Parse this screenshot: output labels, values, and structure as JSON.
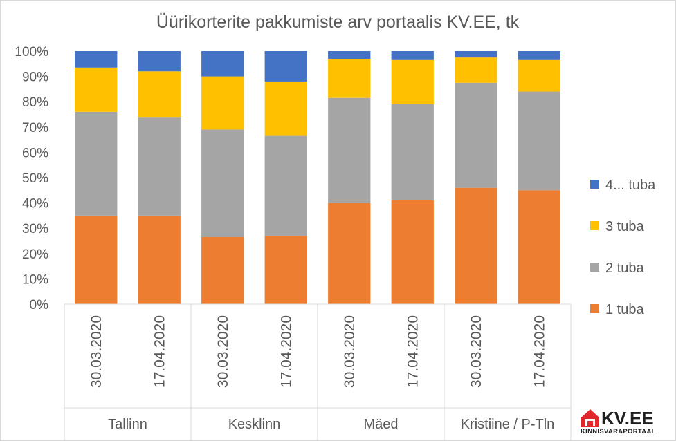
{
  "chart_data": {
    "type": "bar",
    "stacked": "percent",
    "title": "Üürikorterite pakkumiste arv portaalis KV.EE, tk",
    "y_ticks": [
      "0%",
      "10%",
      "20%",
      "30%",
      "40%",
      "50%",
      "60%",
      "70%",
      "80%",
      "90%",
      "100%"
    ],
    "ylim": [
      0,
      100
    ],
    "grid": false,
    "legend_position": "right",
    "groups": [
      {
        "name": "Tallinn",
        "categories": [
          "30.03.2020",
          "17.04.2020"
        ]
      },
      {
        "name": "Kesklinn",
        "categories": [
          "30.03.2020",
          "17.04.2020"
        ]
      },
      {
        "name": "Mäed",
        "categories": [
          "30.03.2020",
          "17.04.2020"
        ]
      },
      {
        "name": "Kristiine / P-Tln",
        "categories": [
          "30.03.2020",
          "17.04.2020"
        ]
      }
    ],
    "series": [
      {
        "name": "1 tuba",
        "color": "#ED7D31",
        "values": [
          35,
          35,
          26.5,
          27,
          40,
          41,
          46,
          45
        ]
      },
      {
        "name": "2 tuba",
        "color": "#A5A5A5",
        "values": [
          41,
          39,
          42.5,
          39.5,
          41.5,
          38,
          41.5,
          39
        ]
      },
      {
        "name": "3 tuba",
        "color": "#FFC000",
        "values": [
          17.5,
          18,
          21,
          21.5,
          15.5,
          17.5,
          10,
          12.5
        ]
      },
      {
        "name": "4... tuba",
        "color": "#4472C4",
        "values": [
          6.5,
          8,
          10,
          12,
          3,
          3.5,
          2.5,
          3.5
        ]
      }
    ]
  },
  "logo": {
    "name": "KV.EE",
    "tagline": "KINNISVARAPORTAAL",
    "house_color": "#e1262c"
  }
}
